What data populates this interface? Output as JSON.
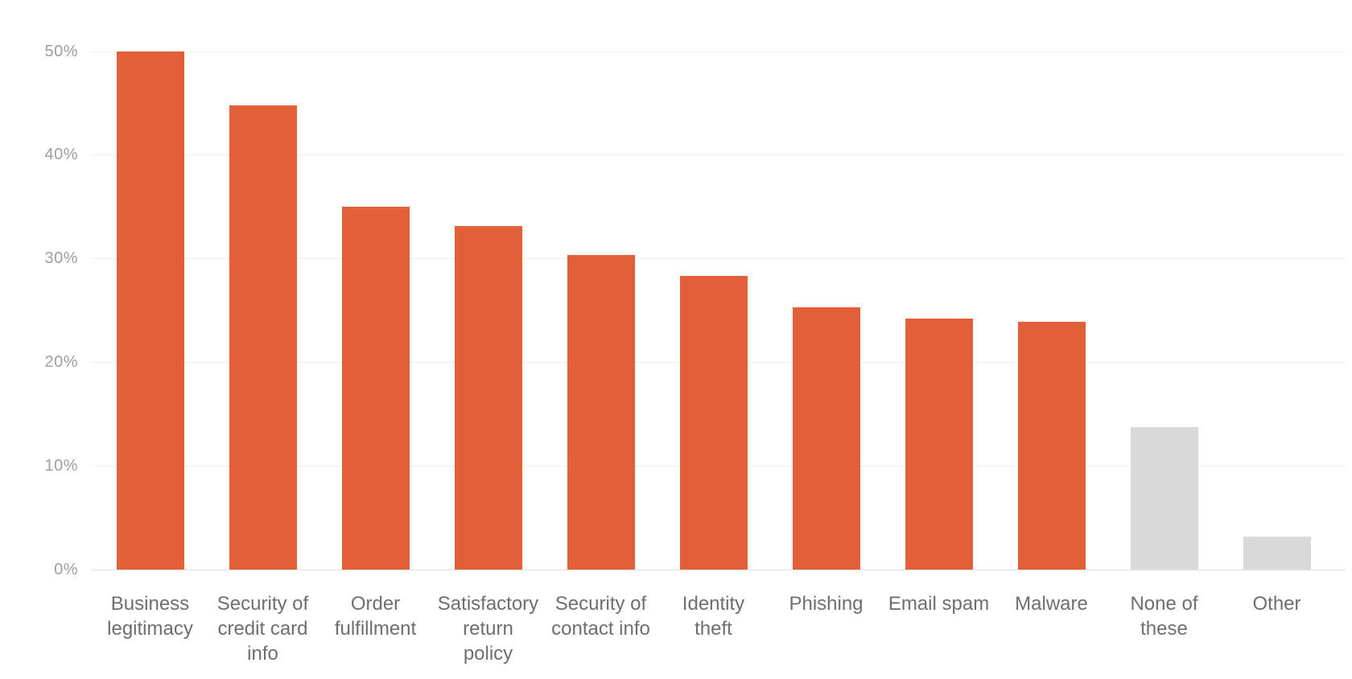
{
  "colors": {
    "background": "#FFFFFF",
    "bar_primary": "#E25F39",
    "bar_muted": "#D9D9D9",
    "gridline": "#EFEFEF",
    "axis_baseline": "#E3E3E3",
    "y_tick_text": "#9E9E9E",
    "x_tick_text": "#6E6E6E"
  },
  "chart_data": {
    "type": "bar",
    "title": "",
    "xlabel": "",
    "ylabel": "",
    "ylim": [
      0,
      50
    ],
    "grid": true,
    "legend": false,
    "y_ticks": [
      {
        "label": "0%",
        "value": 0
      },
      {
        "label": "10%",
        "value": 10
      },
      {
        "label": "20%",
        "value": 20
      },
      {
        "label": "30%",
        "value": 30
      },
      {
        "label": "40%",
        "value": 40
      },
      {
        "label": "50%",
        "value": 50
      }
    ],
    "categories": [
      "Business legitimacy",
      "Security of credit card info",
      "Order fulfillment",
      "Satisfactory return policy",
      "Security of contact info",
      "Identity theft",
      "Phishing",
      "Email spam",
      "Malware",
      "None of these",
      "Other"
    ],
    "points": [
      {
        "label": "Business legitimacy",
        "label_lines": [
          "Business",
          "legitimacy"
        ],
        "value": 50,
        "color": "bar_primary"
      },
      {
        "label": "Security of credit card info",
        "label_lines": [
          "Security of",
          "credit card",
          "info"
        ],
        "value": 44.8,
        "color": "bar_primary"
      },
      {
        "label": "Order fulfillment",
        "label_lines": [
          "Order",
          "fulfillment"
        ],
        "value": 35,
        "color": "bar_primary"
      },
      {
        "label": "Satisfactory return policy",
        "label_lines": [
          "Satisfactory",
          "return",
          "policy"
        ],
        "value": 33.1,
        "color": "bar_primary"
      },
      {
        "label": "Security of contact info",
        "label_lines": [
          "Security of",
          "contact info"
        ],
        "value": 30.3,
        "color": "bar_primary"
      },
      {
        "label": "Identity theft",
        "label_lines": [
          "Identity",
          "theft"
        ],
        "value": 28.3,
        "color": "bar_primary"
      },
      {
        "label": "Phishing",
        "label_lines": [
          "Phishing"
        ],
        "value": 25.3,
        "color": "bar_primary"
      },
      {
        "label": "Email spam",
        "label_lines": [
          "Email spam"
        ],
        "value": 24.2,
        "color": "bar_primary"
      },
      {
        "label": "Malware",
        "label_lines": [
          "Malware"
        ],
        "value": 23.9,
        "color": "bar_primary"
      },
      {
        "label": "None of these",
        "label_lines": [
          "None of",
          "these"
        ],
        "value": 13.7,
        "color": "bar_muted"
      },
      {
        "label": "Other",
        "label_lines": [
          "Other"
        ],
        "value": 3.2,
        "color": "bar_muted"
      }
    ]
  }
}
